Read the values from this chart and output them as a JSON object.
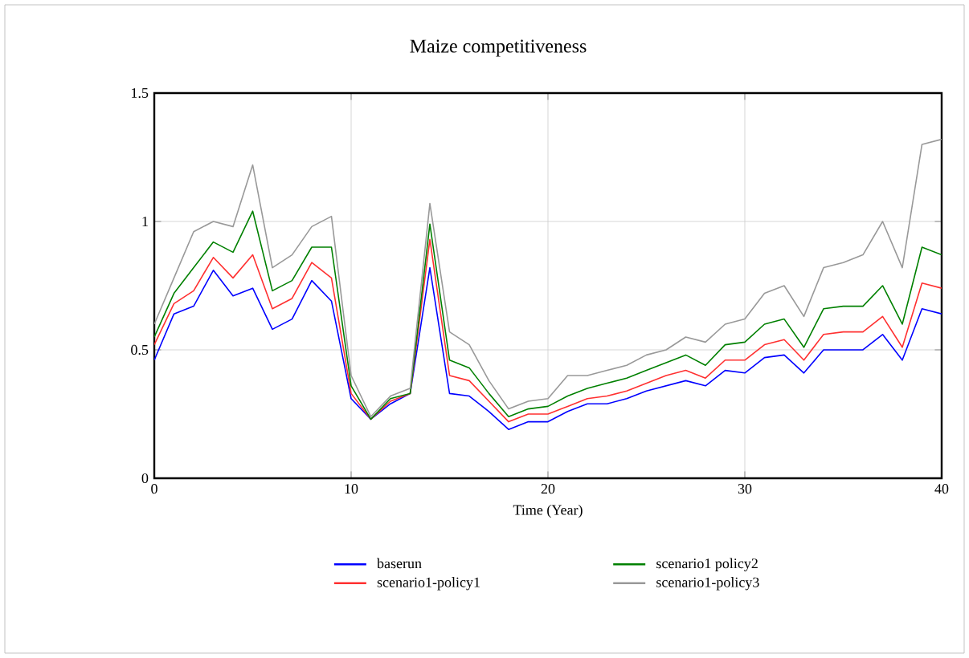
{
  "chart_data": {
    "type": "line",
    "title": "Maize competitiveness",
    "xlabel": "Time (Year)",
    "x": [
      0,
      1,
      2,
      3,
      4,
      5,
      6,
      7,
      8,
      9,
      10,
      11,
      12,
      13,
      14,
      15,
      16,
      17,
      18,
      19,
      20,
      21,
      22,
      23,
      24,
      25,
      26,
      27,
      28,
      29,
      30,
      31,
      32,
      33,
      34,
      35,
      36,
      37,
      38,
      39,
      40
    ],
    "series": [
      {
        "name": "baserun",
        "color": "#0000ff",
        "values": [
          0.46,
          0.64,
          0.67,
          0.81,
          0.71,
          0.74,
          0.58,
          0.62,
          0.77,
          0.69,
          0.31,
          0.23,
          0.29,
          0.33,
          0.82,
          0.33,
          0.32,
          0.26,
          0.19,
          0.22,
          0.22,
          0.26,
          0.29,
          0.29,
          0.31,
          0.34,
          0.36,
          0.38,
          0.36,
          0.42,
          0.41,
          0.47,
          0.48,
          0.41,
          0.5,
          0.5,
          0.5,
          0.56,
          0.46,
          0.66,
          0.64
        ]
      },
      {
        "name": "scenario1-policy1",
        "color": "#ff3030",
        "values": [
          0.52,
          0.68,
          0.73,
          0.86,
          0.78,
          0.87,
          0.66,
          0.7,
          0.84,
          0.78,
          0.33,
          0.23,
          0.3,
          0.33,
          0.93,
          0.4,
          0.38,
          0.3,
          0.22,
          0.25,
          0.25,
          0.28,
          0.31,
          0.32,
          0.34,
          0.37,
          0.4,
          0.42,
          0.39,
          0.46,
          0.46,
          0.52,
          0.54,
          0.46,
          0.56,
          0.57,
          0.57,
          0.63,
          0.51,
          0.76,
          0.74
        ]
      },
      {
        "name": "scenario1 policy2",
        "color": "#008000",
        "values": [
          0.55,
          0.72,
          0.82,
          0.92,
          0.88,
          1.04,
          0.73,
          0.77,
          0.9,
          0.9,
          0.36,
          0.23,
          0.31,
          0.33,
          0.99,
          0.46,
          0.43,
          0.33,
          0.24,
          0.27,
          0.28,
          0.32,
          0.35,
          0.37,
          0.39,
          0.42,
          0.45,
          0.48,
          0.44,
          0.52,
          0.53,
          0.6,
          0.62,
          0.51,
          0.66,
          0.67,
          0.67,
          0.75,
          0.6,
          0.9,
          0.87
        ]
      },
      {
        "name": "scenario1-policy3",
        "color": "#999999",
        "values": [
          0.6,
          0.78,
          0.96,
          1.0,
          0.98,
          1.22,
          0.82,
          0.87,
          0.98,
          1.02,
          0.4,
          0.24,
          0.32,
          0.35,
          1.07,
          0.57,
          0.52,
          0.38,
          0.27,
          0.3,
          0.31,
          0.4,
          0.4,
          0.42,
          0.44,
          0.48,
          0.5,
          0.55,
          0.53,
          0.6,
          0.62,
          0.72,
          0.75,
          0.63,
          0.82,
          0.84,
          0.87,
          1.0,
          0.82,
          1.3,
          1.32
        ]
      }
    ],
    "xlim": [
      0,
      40
    ],
    "ylim": [
      0,
      1.5
    ],
    "xticks": [
      0,
      10,
      20,
      30,
      40
    ],
    "yticks": [
      0,
      0.5,
      1,
      1.5
    ],
    "grid": true,
    "legend": "bottom",
    "marker": "none",
    "line_style": "solid"
  }
}
